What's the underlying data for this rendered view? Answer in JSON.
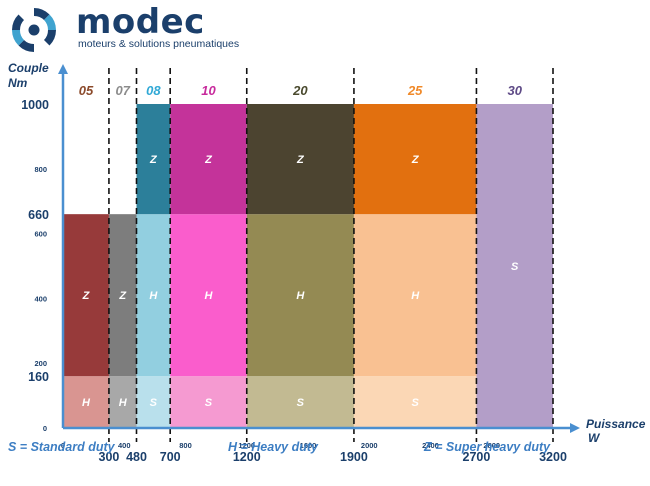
{
  "brand": {
    "name": "modec",
    "tagline": "moteurs & solutions pneumatiques"
  },
  "chart_data": {
    "type": "bar",
    "title": "",
    "xlabel_line1": "Puissance",
    "xlabel_line2": "W",
    "ylabel_line1": "Couple",
    "ylabel_line2": "Nm",
    "xlim": [
      0,
      3200
    ],
    "ylim": [
      0,
      1000
    ],
    "x_ticks_minor": [
      0,
      400,
      800,
      1200,
      1600,
      2000,
      2400,
      2800
    ],
    "x_ticks_major": [
      {
        "value": 300,
        "label": "300"
      },
      {
        "value": 480,
        "label": "480"
      },
      {
        "value": 700,
        "label": "700"
      },
      {
        "value": 1200,
        "label": "1200"
      },
      {
        "value": 1900,
        "label": "1900"
      },
      {
        "value": 2700,
        "label": "2700"
      },
      {
        "value": 3200,
        "label": "3200"
      }
    ],
    "y_ticks_minor": [
      0,
      200,
      400,
      600,
      800
    ],
    "y_ticks_major": [
      {
        "value": 160,
        "label": "160"
      },
      {
        "value": 660,
        "label": "660"
      },
      {
        "value": 1000,
        "label": "1000"
      }
    ],
    "segments_breakpoints": [
      300,
      480,
      700,
      1200,
      1900,
      2700,
      3200
    ],
    "series": [
      {
        "name": "05",
        "x_start": 0,
        "x_end": 300,
        "color": "#8b4a2b",
        "bands": [
          {
            "label": "H",
            "y_from": 0,
            "y_to": 160,
            "color": "#d99591"
          },
          {
            "label": "Z",
            "y_from": 160,
            "y_to": 660,
            "color": "#973a3a"
          }
        ]
      },
      {
        "name": "07",
        "x_start": 300,
        "x_end": 480,
        "color": "#8c8c8c",
        "bands": [
          {
            "label": "H",
            "y_from": 0,
            "y_to": 160,
            "color": "#a8a8a8"
          },
          {
            "label": "Z",
            "y_from": 160,
            "y_to": 660,
            "color": "#7d7d7d"
          }
        ]
      },
      {
        "name": "08",
        "x_start": 480,
        "x_end": 700,
        "color": "#31a9d6",
        "bands": [
          {
            "label": "S",
            "y_from": 0,
            "y_to": 160,
            "color": "#b9e0ec"
          },
          {
            "label": "H",
            "y_from": 160,
            "y_to": 660,
            "color": "#92cfe0"
          },
          {
            "label": "Z",
            "y_from": 660,
            "y_to": 1000,
            "color": "#2c7f9a"
          }
        ]
      },
      {
        "name": "10",
        "x_start": 700,
        "x_end": 1200,
        "color": "#c72a9c",
        "bands": [
          {
            "label": "S",
            "y_from": 0,
            "y_to": 160,
            "color": "#f59ad1"
          },
          {
            "label": "H",
            "y_from": 160,
            "y_to": 660,
            "color": "#fa5dcc"
          },
          {
            "label": "Z",
            "y_from": 660,
            "y_to": 1000,
            "color": "#c4339a"
          }
        ]
      },
      {
        "name": "20",
        "x_start": 1200,
        "x_end": 1900,
        "color": "#4a4a2e",
        "bands": [
          {
            "label": "S",
            "y_from": 0,
            "y_to": 160,
            "color": "#c2ba92"
          },
          {
            "label": "H",
            "y_from": 160,
            "y_to": 660,
            "color": "#948a53"
          },
          {
            "label": "Z",
            "y_from": 660,
            "y_to": 1000,
            "color": "#4c4430"
          }
        ]
      },
      {
        "name": "25",
        "x_start": 1900,
        "x_end": 2700,
        "color": "#f08a2a",
        "bands": [
          {
            "label": "S",
            "y_from": 0,
            "y_to": 160,
            "color": "#fbd7b5"
          },
          {
            "label": "H",
            "y_from": 160,
            "y_to": 660,
            "color": "#f9c192"
          },
          {
            "label": "Z",
            "y_from": 660,
            "y_to": 1000,
            "color": "#e2700f"
          }
        ]
      },
      {
        "name": "30",
        "x_start": 2700,
        "x_end": 3200,
        "color": "#5e4a86",
        "bands": [
          {
            "label": "S",
            "y_from": 0,
            "y_to": 1000,
            "color": "#b39ec8"
          }
        ]
      }
    ],
    "legend": [
      {
        "text": "S = Standard duty"
      },
      {
        "text": "H = Heavy duty"
      },
      {
        "text": "Z = Super heavy duty"
      }
    ],
    "axis_color": "#4a8fd0",
    "grid": false
  }
}
